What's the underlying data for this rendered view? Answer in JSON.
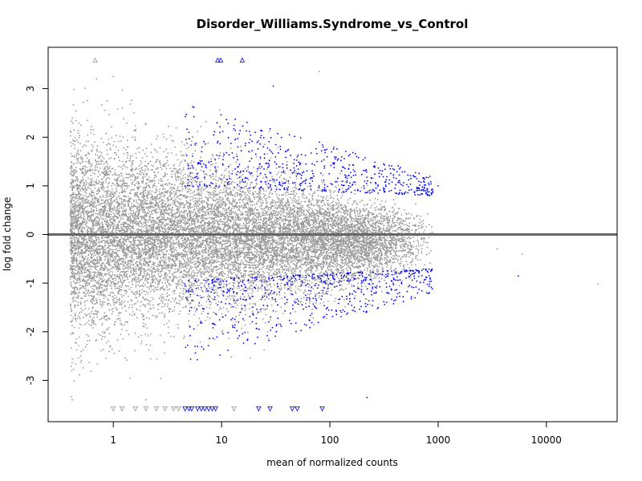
{
  "chart_data": {
    "type": "scatter",
    "title": "Disorder_Williams.Syndrome_vs_Control",
    "xlabel": "mean of normalized counts",
    "ylabel": "log fold change",
    "xscale": "log10",
    "xlim": [
      0.25,
      45000
    ],
    "ylim": [
      -3.85,
      3.85
    ],
    "x_ticks": [
      1,
      10,
      100,
      1000,
      10000
    ],
    "x_tick_labels": [
      "1",
      "10",
      "100",
      "1000",
      "10000"
    ],
    "y_ticks": [
      -3,
      -2,
      -1,
      0,
      1,
      2,
      3
    ],
    "y_tick_labels": [
      "-3",
      "-2",
      "-1",
      "0",
      "1",
      "2",
      "3"
    ],
    "reference_line": {
      "y": 0,
      "color": "#666666"
    },
    "grid": false,
    "colors": {
      "not_significant": "#999999",
      "significant": "#0000ff"
    },
    "point_clouds": [
      {
        "group": "not_significant",
        "count": 14000,
        "x_range": [
          0.4,
          900
        ],
        "y_center": 0,
        "y_spread_low_x": 1.3,
        "y_spread_high_x": 0.35
      },
      {
        "group": "significant",
        "count": 1200,
        "x_range": [
          4.5,
          900
        ],
        "y_abs_range": [
          0.6,
          2.7
        ]
      }
    ],
    "representative_points": {
      "significant": [
        {
          "x": 5,
          "y": 2.1
        },
        {
          "x": 8,
          "y": 1.5
        },
        {
          "x": 15,
          "y": 1.3
        },
        {
          "x": 30,
          "y": 3.05
        },
        {
          "x": 50,
          "y": 1.6
        },
        {
          "x": 80,
          "y": 1.9
        },
        {
          "x": 150,
          "y": 1.0
        },
        {
          "x": 400,
          "y": 0.95
        },
        {
          "x": 1000,
          "y": 1.0
        },
        {
          "x": 6,
          "y": -2.3
        },
        {
          "x": 15,
          "y": -1.6
        },
        {
          "x": 40,
          "y": -1.4
        },
        {
          "x": 100,
          "y": -1.0
        },
        {
          "x": 200,
          "y": -0.85
        },
        {
          "x": 600,
          "y": -0.8
        },
        {
          "x": 5500,
          "y": -0.85
        },
        {
          "x": 220,
          "y": -3.35
        }
      ],
      "not_significant": [
        {
          "x": 0.7,
          "y": 3.2
        },
        {
          "x": 1.0,
          "y": 3.25
        },
        {
          "x": 2,
          "y": -3.4
        },
        {
          "x": 80,
          "y": 3.35
        },
        {
          "x": 30000,
          "y": -1.02
        },
        {
          "x": 3500,
          "y": -0.3
        },
        {
          "x": 6000,
          "y": -0.4
        }
      ]
    },
    "clipped_points": {
      "top": [
        {
          "x": 0.68,
          "y": 3.5,
          "group": "not_significant"
        },
        {
          "x": 9.2,
          "y": 3.5,
          "group": "significant"
        },
        {
          "x": 9.8,
          "y": 3.5,
          "group": "significant"
        },
        {
          "x": 15.5,
          "y": 3.5,
          "group": "significant"
        }
      ],
      "bottom": [
        {
          "x": 1.0,
          "y": -3.5,
          "group": "not_significant"
        },
        {
          "x": 1.2,
          "y": -3.5,
          "group": "not_significant"
        },
        {
          "x": 1.6,
          "y": -3.5,
          "group": "not_significant"
        },
        {
          "x": 2.0,
          "y": -3.5,
          "group": "not_significant"
        },
        {
          "x": 2.5,
          "y": -3.5,
          "group": "not_significant"
        },
        {
          "x": 3.0,
          "y": -3.5,
          "group": "not_significant"
        },
        {
          "x": 3.6,
          "y": -3.5,
          "group": "not_significant"
        },
        {
          "x": 4.0,
          "y": -3.5,
          "group": "not_significant"
        },
        {
          "x": 4.6,
          "y": -3.5,
          "group": "significant"
        },
        {
          "x": 5.0,
          "y": -3.5,
          "group": "significant"
        },
        {
          "x": 5.3,
          "y": -3.5,
          "group": "significant"
        },
        {
          "x": 6.0,
          "y": -3.5,
          "group": "significant"
        },
        {
          "x": 6.5,
          "y": -3.5,
          "group": "significant"
        },
        {
          "x": 7.0,
          "y": -3.5,
          "group": "significant"
        },
        {
          "x": 7.6,
          "y": -3.5,
          "group": "significant"
        },
        {
          "x": 8.2,
          "y": -3.5,
          "group": "significant"
        },
        {
          "x": 8.8,
          "y": -3.5,
          "group": "significant"
        },
        {
          "x": 13,
          "y": -3.5,
          "group": "not_significant"
        },
        {
          "x": 22,
          "y": -3.5,
          "group": "significant"
        },
        {
          "x": 28,
          "y": -3.5,
          "group": "significant"
        },
        {
          "x": 45,
          "y": -3.5,
          "group": "significant"
        },
        {
          "x": 50,
          "y": -3.5,
          "group": "significant"
        },
        {
          "x": 85,
          "y": -3.5,
          "group": "significant"
        }
      ]
    }
  }
}
